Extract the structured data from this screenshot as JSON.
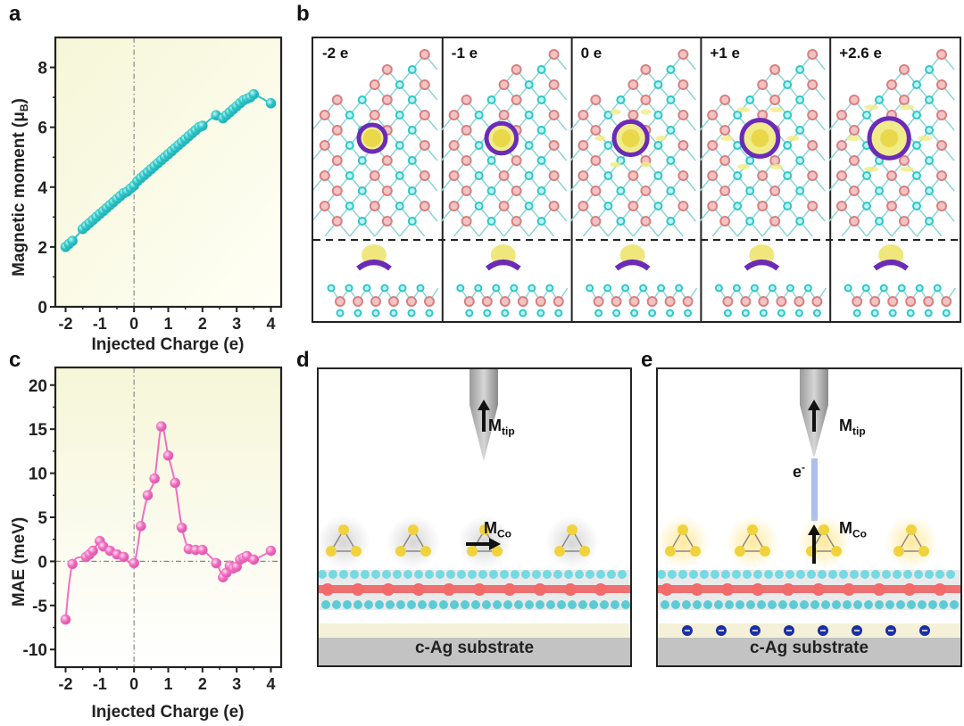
{
  "panels": {
    "a": {
      "letter": "a"
    },
    "b": {
      "letter": "b",
      "columns": [
        "-2 e",
        "-1 e",
        "0 e",
        "+1 e",
        "+2.6 e"
      ]
    },
    "c": {
      "letter": "c"
    },
    "d": {
      "letter": "d",
      "m_tip": "M",
      "m_tip_sub": "tip",
      "m_co": "M",
      "m_co_sub": "Co",
      "substrate": "c-Ag substrate"
    },
    "e": {
      "letter": "e",
      "m_tip": "M",
      "m_tip_sub": "tip",
      "m_co": "M",
      "m_co_sub": "Co",
      "electron": "e",
      "electron_sup": "-",
      "substrate": "c-Ag substrate"
    }
  },
  "colors": {
    "cyan": "#2ec7c9",
    "pink": "#f06fc0",
    "plot_bg": "#fbfbe6",
    "yellow": "#e8d84a",
    "purple": "#6b2bb8",
    "salmon": "#d98080"
  },
  "chart_data": [
    {
      "type": "line",
      "panel": "a",
      "title": "",
      "xlabel": "Injected Charge (e)",
      "ylabel": "Magnetic moment (μB)",
      "xlim": [
        -2.3,
        4.3
      ],
      "ylim": [
        0,
        9
      ],
      "xticks": [
        "-2",
        "-1",
        "0",
        "1",
        "2",
        "3",
        "4"
      ],
      "yticks": [
        "0",
        "2",
        "4",
        "6",
        "8"
      ],
      "x": [
        -2.0,
        -1.9,
        -1.8,
        -1.5,
        -1.4,
        -1.3,
        -1.2,
        -1.1,
        -1.0,
        -0.9,
        -0.8,
        -0.7,
        -0.6,
        -0.5,
        -0.4,
        -0.3,
        -0.2,
        -0.1,
        0.0,
        0.1,
        0.2,
        0.3,
        0.4,
        0.5,
        0.6,
        0.7,
        0.8,
        0.9,
        1.0,
        1.1,
        1.2,
        1.3,
        1.4,
        1.5,
        1.6,
        1.7,
        1.8,
        1.9,
        2.0,
        2.4,
        2.6,
        2.7,
        2.8,
        2.9,
        3.0,
        3.1,
        3.2,
        3.3,
        3.4,
        3.5,
        4.0
      ],
      "y": [
        2.0,
        2.1,
        2.2,
        2.6,
        2.7,
        2.8,
        2.9,
        3.0,
        3.1,
        3.2,
        3.3,
        3.4,
        3.5,
        3.6,
        3.7,
        3.8,
        3.85,
        3.95,
        4.05,
        4.2,
        4.3,
        4.4,
        4.5,
        4.6,
        4.7,
        4.8,
        4.9,
        5.0,
        5.1,
        5.2,
        5.3,
        5.4,
        5.5,
        5.6,
        5.7,
        5.8,
        5.9,
        6.0,
        6.05,
        6.4,
        6.3,
        6.4,
        6.5,
        6.6,
        6.7,
        6.8,
        6.9,
        6.95,
        7.0,
        7.1,
        6.8
      ],
      "series_name": "Magnetic moment",
      "reference_lines": {
        "x": 0
      }
    },
    {
      "type": "line",
      "panel": "c",
      "title": "",
      "xlabel": "Injected Charge (e)",
      "ylabel": "MAE (meV)",
      "xlim": [
        -2.3,
        4.3
      ],
      "ylim": [
        -12,
        22
      ],
      "xticks": [
        "-2",
        "-1",
        "0",
        "1",
        "2",
        "3",
        "4"
      ],
      "yticks": [
        "-10",
        "-5",
        "0",
        "5",
        "10",
        "15",
        "20"
      ],
      "x": [
        -2.0,
        -1.8,
        -1.4,
        -1.3,
        -1.2,
        -1.0,
        -0.9,
        -0.7,
        -0.5,
        -0.3,
        0.0,
        0.2,
        0.4,
        0.6,
        0.8,
        1.0,
        1.2,
        1.4,
        1.6,
        1.8,
        2.0,
        2.4,
        2.6,
        2.7,
        2.8,
        2.9,
        3.0,
        3.1,
        3.2,
        3.3,
        3.5,
        4.0
      ],
      "y": [
        -6.6,
        -0.3,
        0.5,
        0.8,
        1.2,
        2.3,
        1.7,
        1.2,
        0.8,
        0.5,
        -0.2,
        4.0,
        7.5,
        9.4,
        15.3,
        12.0,
        8.9,
        3.8,
        1.4,
        1.3,
        1.3,
        -0.2,
        -1.8,
        -1.3,
        -0.5,
        -0.8,
        -0.6,
        0.2,
        0.4,
        0.6,
        0.2,
        1.2
      ],
      "series_name": "MAE",
      "reference_lines": {
        "x": 0,
        "y": 0
      }
    }
  ]
}
